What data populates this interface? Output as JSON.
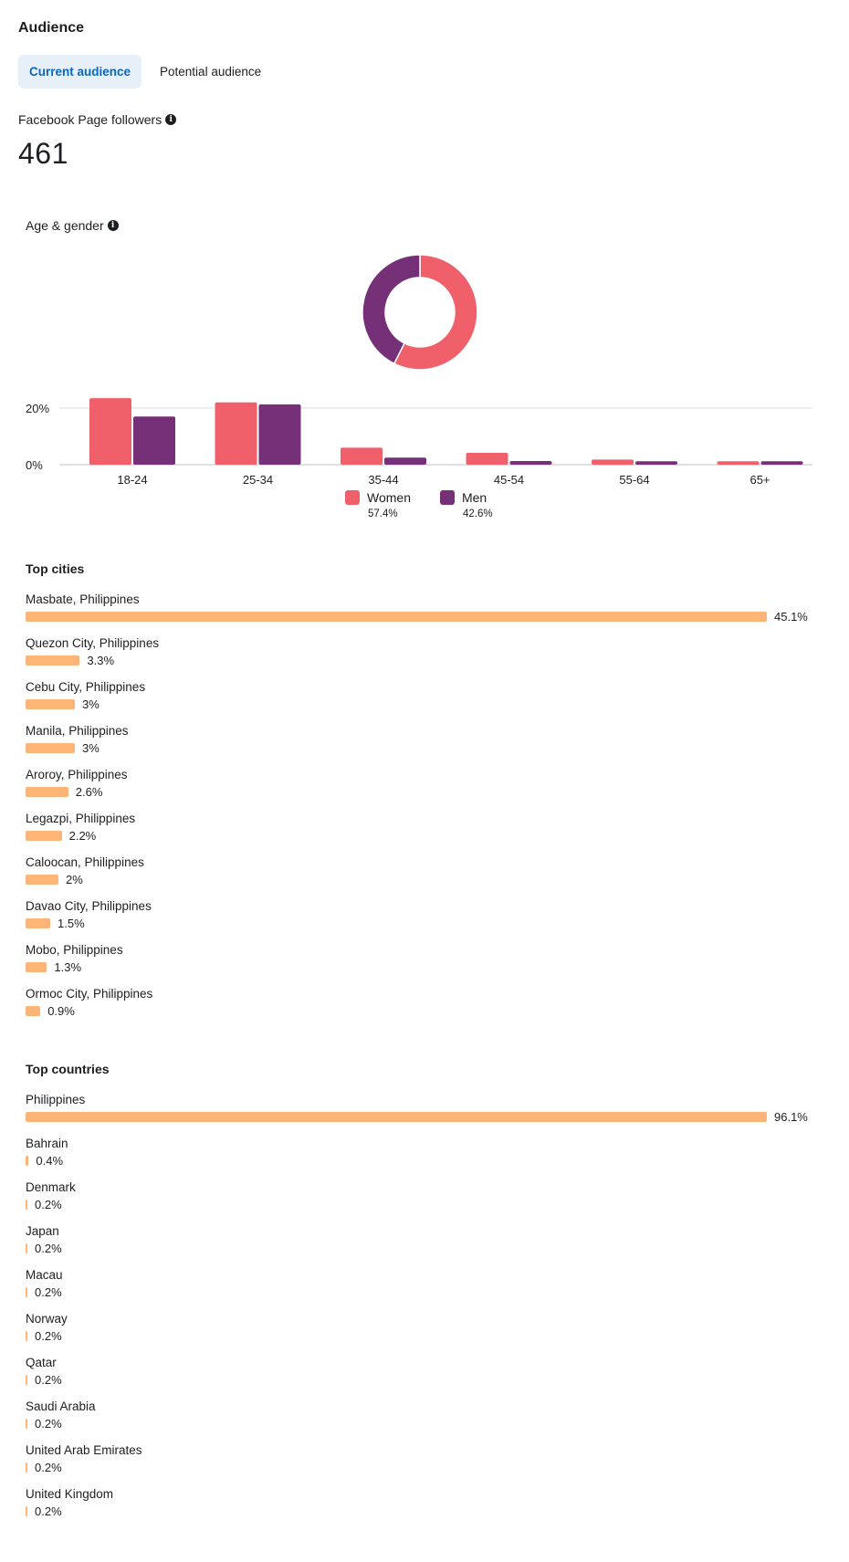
{
  "header": {
    "title": "Audience"
  },
  "tabs": [
    {
      "label": "Current audience",
      "active": true
    },
    {
      "label": "Potential audience",
      "active": false
    }
  ],
  "followers": {
    "label": "Facebook Page followers",
    "value": "461"
  },
  "age_gender": {
    "title": "Age & gender"
  },
  "chart_data": {
    "type": "bar",
    "title": "Age & gender",
    "categories": [
      "18-24",
      "25-34",
      "35-44",
      "45-54",
      "55-64",
      "65+"
    ],
    "series": [
      {
        "name": "Women",
        "color": "#f0606b",
        "values": [
          23.5,
          22.0,
          6.0,
          4.2,
          1.8,
          1.2
        ]
      },
      {
        "name": "Men",
        "color": "#763078",
        "values": [
          17.0,
          21.3,
          2.5,
          1.3,
          1.2,
          1.2
        ]
      }
    ],
    "yticks": [
      {
        "value": 0,
        "label": "0%"
      },
      {
        "value": 20,
        "label": "20%"
      }
    ],
    "ylim": [
      0,
      25
    ],
    "donut": [
      {
        "name": "Women",
        "value": 57.4,
        "color": "#f0606b"
      },
      {
        "name": "Men",
        "value": 42.6,
        "color": "#763078"
      }
    ],
    "legend": [
      {
        "name": "Women",
        "pct": "57.4%",
        "color": "#f0606b"
      },
      {
        "name": "Men",
        "pct": "42.6%",
        "color": "#763078"
      }
    ]
  },
  "top_cities": {
    "title": "Top cities",
    "items": [
      {
        "label": "Masbate, Philippines",
        "value": 45.1,
        "value_text": "45.1%"
      },
      {
        "label": "Quezon City, Philippines",
        "value": 3.3,
        "value_text": "3.3%"
      },
      {
        "label": "Cebu City, Philippines",
        "value": 3,
        "value_text": "3%"
      },
      {
        "label": "Manila, Philippines",
        "value": 3,
        "value_text": "3%"
      },
      {
        "label": "Aroroy, Philippines",
        "value": 2.6,
        "value_text": "2.6%"
      },
      {
        "label": "Legazpi, Philippines",
        "value": 2.2,
        "value_text": "2.2%"
      },
      {
        "label": "Caloocan, Philippines",
        "value": 2,
        "value_text": "2%"
      },
      {
        "label": "Davao City, Philippines",
        "value": 1.5,
        "value_text": "1.5%"
      },
      {
        "label": "Mobo, Philippines",
        "value": 1.3,
        "value_text": "1.3%"
      },
      {
        "label": "Ormoc City, Philippines",
        "value": 0.9,
        "value_text": "0.9%"
      }
    ]
  },
  "top_countries": {
    "title": "Top countries",
    "items": [
      {
        "label": "Philippines",
        "value": 96.1,
        "value_text": "96.1%"
      },
      {
        "label": "Bahrain",
        "value": 0.4,
        "value_text": "0.4%"
      },
      {
        "label": "Denmark",
        "value": 0.2,
        "value_text": "0.2%"
      },
      {
        "label": "Japan",
        "value": 0.2,
        "value_text": "0.2%"
      },
      {
        "label": "Macau",
        "value": 0.2,
        "value_text": "0.2%"
      },
      {
        "label": "Norway",
        "value": 0.2,
        "value_text": "0.2%"
      },
      {
        "label": "Qatar",
        "value": 0.2,
        "value_text": "0.2%"
      },
      {
        "label": "Saudi Arabia",
        "value": 0.2,
        "value_text": "0.2%"
      },
      {
        "label": "United Arab Emirates",
        "value": 0.2,
        "value_text": "0.2%"
      },
      {
        "label": "United Kingdom",
        "value": 0.2,
        "value_text": "0.2%"
      }
    ]
  },
  "colors": {
    "accent": "#0a66c2",
    "bar": "#fdb577",
    "women": "#f0606b",
    "men": "#763078"
  }
}
